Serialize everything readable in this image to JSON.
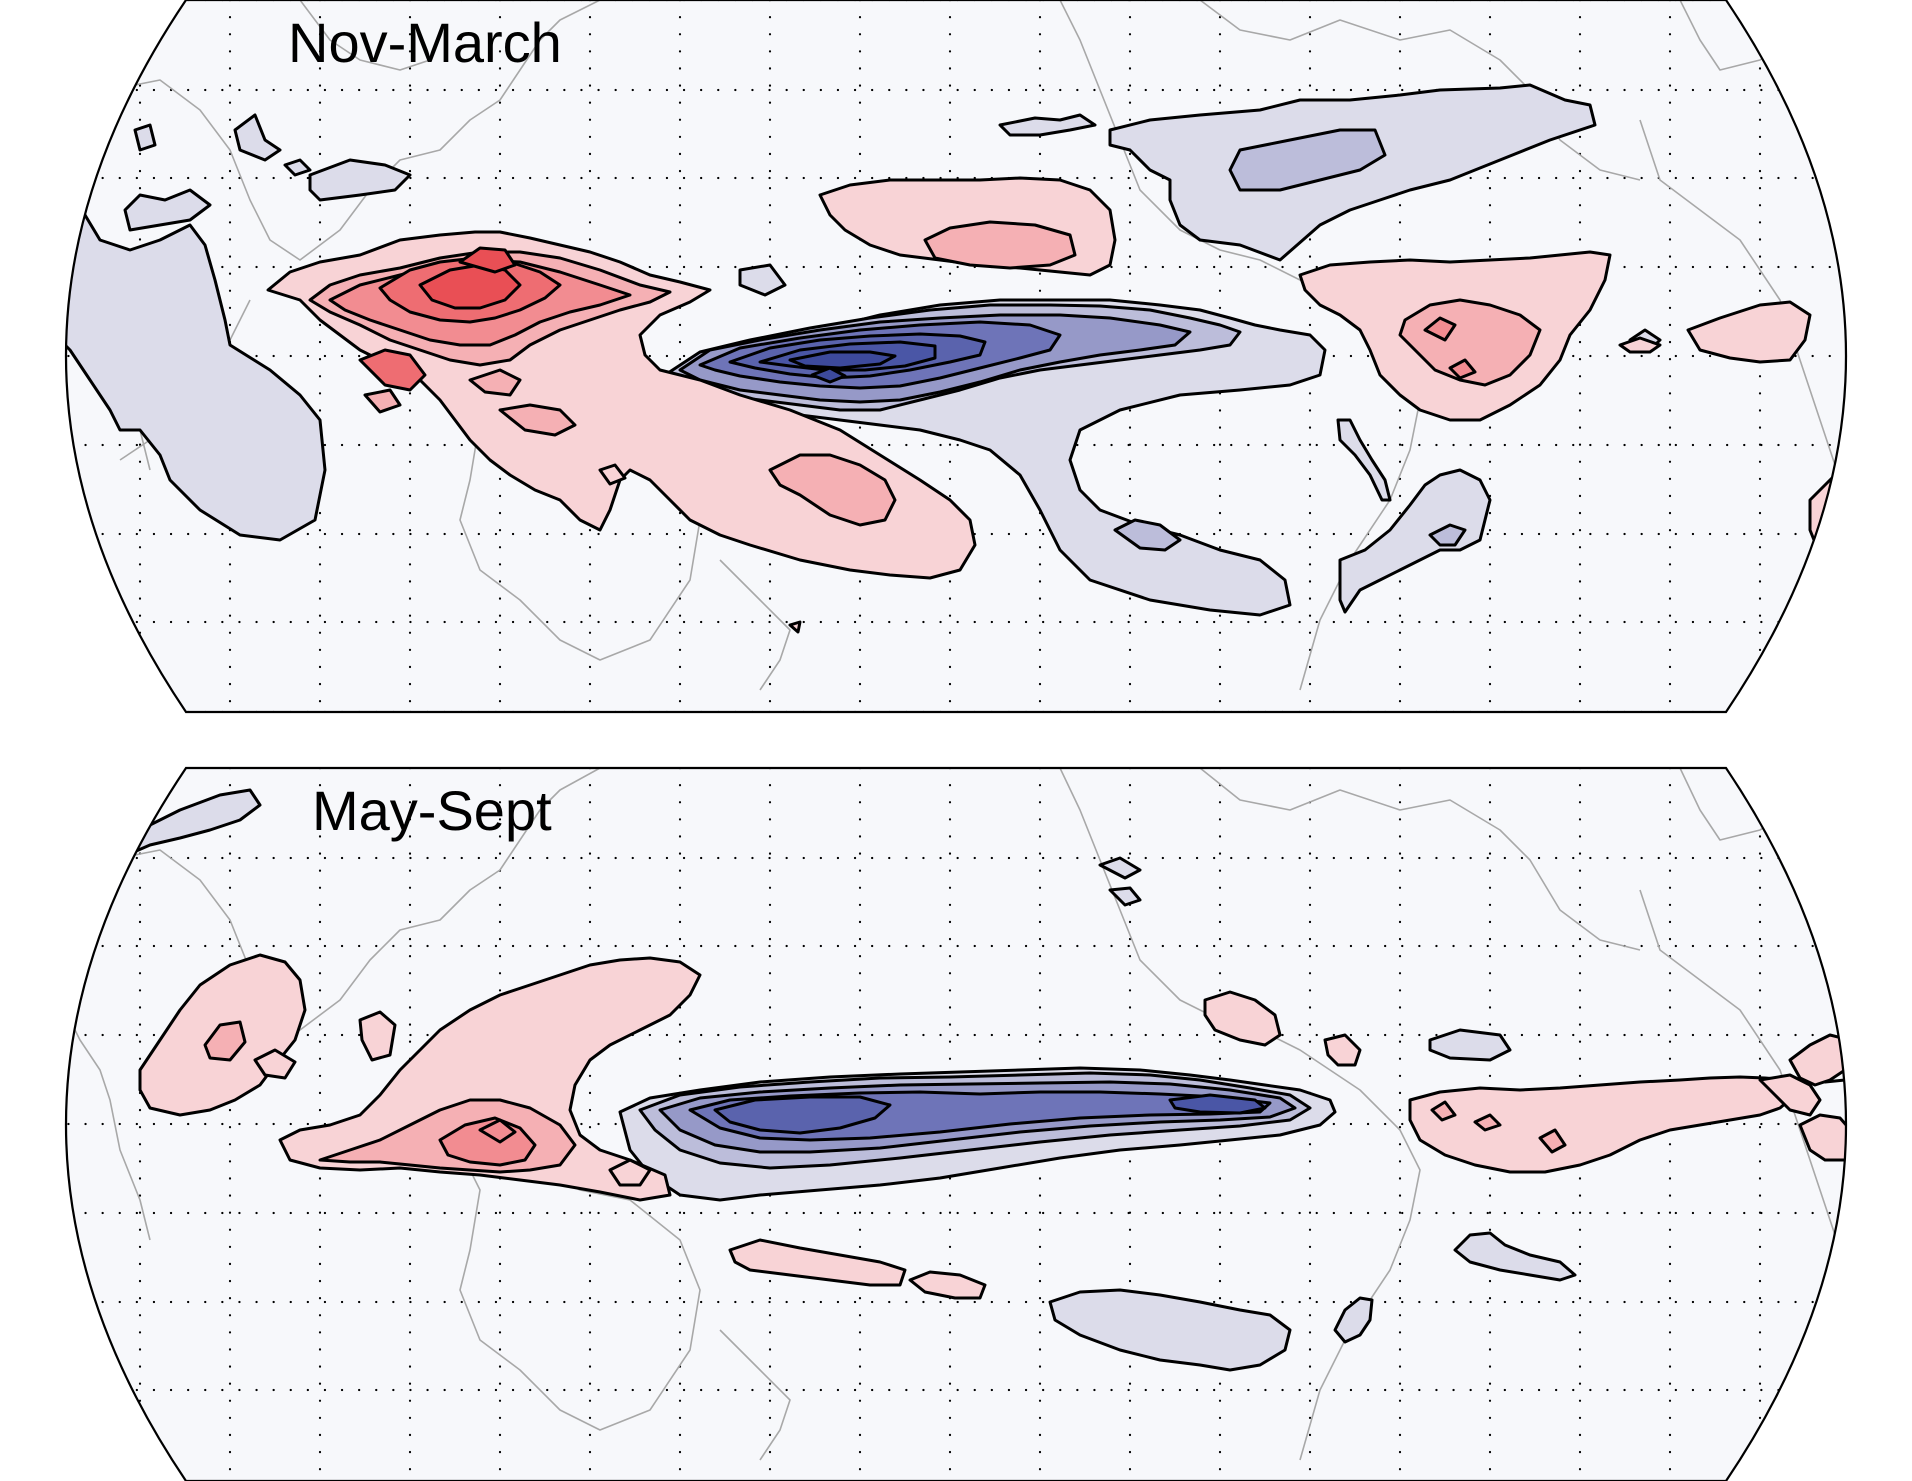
{
  "panels": [
    {
      "id": "top",
      "title": "Nov-March"
    },
    {
      "id": "bottom",
      "title": "May-Sept"
    }
  ],
  "palette": {
    "ocean": "#f7f8fb",
    "coast": "#a8a8a8",
    "positive": [
      "#f8d3d6",
      "#f5b0b4",
      "#f28c91",
      "#ee6d72",
      "#e94f55"
    ],
    "negative": [
      "#dcdcea",
      "#bcbdda",
      "#9699c8",
      "#6e74b8",
      "#4a56a6"
    ]
  },
  "map": {
    "projection": "Eckert-like pseudo-cylindrical, Pacific-centred",
    "gridlines": "dotted, every 30 degrees"
  }
}
